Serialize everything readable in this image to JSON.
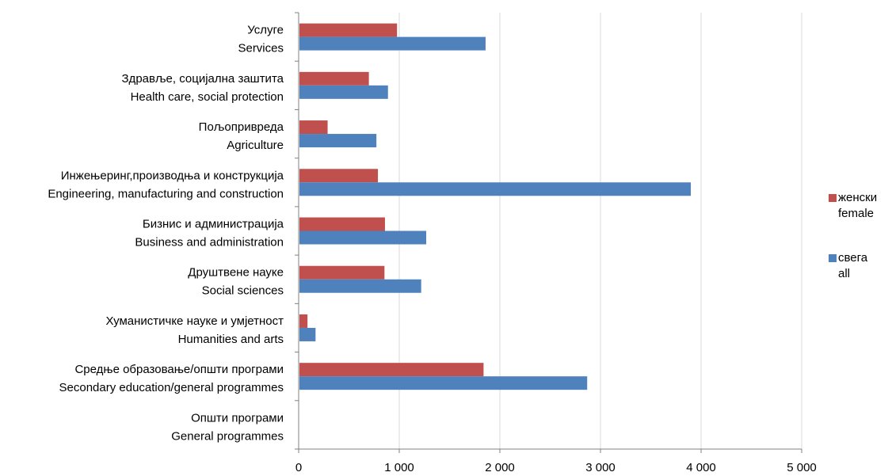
{
  "chart_data": {
    "type": "bar",
    "orientation": "horizontal",
    "categories": [
      {
        "line1": "Услуге",
        "line2": "Services"
      },
      {
        "line1": "Здравље, социјална заштита",
        "line2": "Health care, social protection"
      },
      {
        "line1": "Пољопривреда",
        "line2": "Agriculture"
      },
      {
        "line1": "Инжењеринг,производња и конструкција",
        "line2": "Engineering, manufacturing and construction"
      },
      {
        "line1": "Бизнис и администрација",
        "line2": "Business and administration"
      },
      {
        "line1": "Друштвене науке",
        "line2": "Social sciences"
      },
      {
        "line1": "Хуманистичке науке и умјетност",
        "line2": "Humanities and arts"
      },
      {
        "line1": "Средње образовање/општи програми",
        "line2": "Secondary education/general programmes"
      },
      {
        "line1": "Општи програми",
        "line2": "General programmes"
      }
    ],
    "series": [
      {
        "name_line1": "женски",
        "name_line2": "female",
        "color": "#C0504D",
        "values": [
          970,
          690,
          280,
          780,
          850,
          845,
          80,
          1830,
          0
        ]
      },
      {
        "name_line1": "свега",
        "name_line2": "all",
        "color": "#4F81BD",
        "values": [
          1850,
          880,
          765,
          3890,
          1260,
          1210,
          160,
          2860,
          0
        ]
      }
    ],
    "xlim": [
      0,
      5000
    ],
    "xticks": [
      0,
      1000,
      2000,
      3000,
      4000,
      5000
    ],
    "xtick_labels": [
      "0",
      "1 000",
      "2 000",
      "3 000",
      "4 000",
      "5 000"
    ],
    "grid": "vertical",
    "legend_position": "right"
  }
}
